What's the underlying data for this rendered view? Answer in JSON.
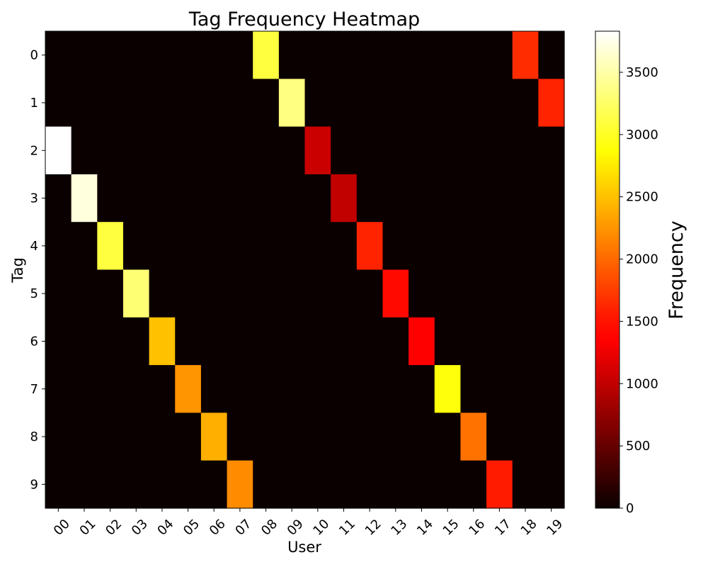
{
  "chart_data": {
    "type": "heatmap",
    "title": "Tag Frequency Heatmap",
    "xlabel": "User",
    "ylabel": "Tag",
    "x_categories": [
      "00",
      "01",
      "02",
      "03",
      "04",
      "05",
      "06",
      "07",
      "08",
      "09",
      "10",
      "11",
      "12",
      "13",
      "14",
      "15",
      "16",
      "17",
      "18",
      "19"
    ],
    "y_categories": [
      "0",
      "1",
      "2",
      "3",
      "4",
      "5",
      "6",
      "7",
      "8",
      "9"
    ],
    "values": [
      [
        0,
        0,
        0,
        0,
        0,
        0,
        0,
        0,
        3100,
        0,
        0,
        0,
        0,
        0,
        0,
        0,
        0,
        0,
        1650,
        0
      ],
      [
        0,
        0,
        0,
        0,
        0,
        0,
        0,
        0,
        0,
        3350,
        0,
        0,
        0,
        0,
        0,
        0,
        0,
        0,
        0,
        1600
      ],
      [
        3830,
        0,
        0,
        0,
        0,
        0,
        0,
        0,
        0,
        0,
        1050,
        0,
        0,
        0,
        0,
        0,
        0,
        0,
        0,
        0
      ],
      [
        0,
        3700,
        0,
        0,
        0,
        0,
        0,
        0,
        0,
        0,
        0,
        1000,
        0,
        0,
        0,
        0,
        0,
        0,
        0,
        0
      ],
      [
        0,
        0,
        3100,
        0,
        0,
        0,
        0,
        0,
        0,
        0,
        0,
        0,
        1600,
        0,
        0,
        0,
        0,
        0,
        0,
        0
      ],
      [
        0,
        0,
        0,
        3300,
        0,
        0,
        0,
        0,
        0,
        0,
        0,
        0,
        0,
        1450,
        0,
        0,
        0,
        0,
        0,
        0
      ],
      [
        0,
        0,
        0,
        0,
        2500,
        0,
        0,
        0,
        0,
        0,
        0,
        0,
        0,
        0,
        1350,
        0,
        0,
        0,
        0,
        0
      ],
      [
        0,
        0,
        0,
        0,
        0,
        2250,
        0,
        0,
        0,
        0,
        0,
        0,
        0,
        0,
        0,
        2900,
        0,
        0,
        0,
        0
      ],
      [
        0,
        0,
        0,
        0,
        0,
        0,
        2400,
        0,
        0,
        0,
        0,
        0,
        0,
        0,
        0,
        0,
        2050,
        0,
        0,
        0
      ],
      [
        0,
        0,
        0,
        0,
        0,
        0,
        0,
        2200,
        0,
        0,
        0,
        0,
        0,
        0,
        0,
        0,
        0,
        1550,
        0,
        0
      ]
    ],
    "colorbar": {
      "label": "Frequency",
      "min": 0,
      "max": 3830,
      "ticks": [
        0,
        500,
        1000,
        1500,
        2000,
        2500,
        3000,
        3500
      ],
      "colormap": "hot"
    }
  }
}
